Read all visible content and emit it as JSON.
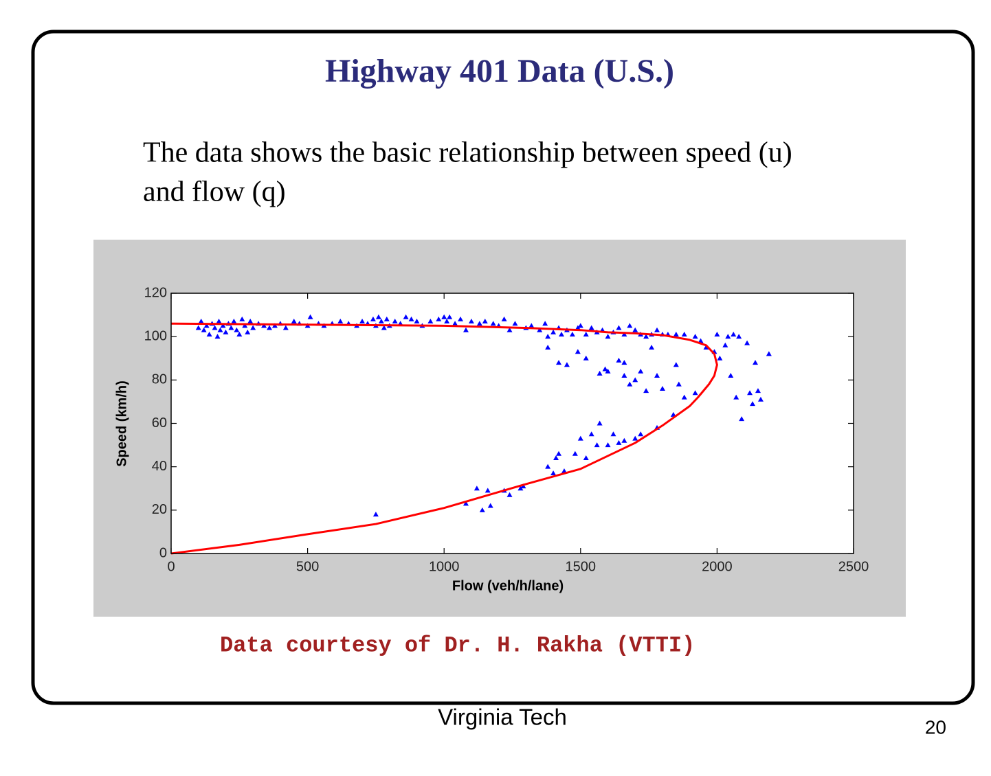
{
  "header": {
    "title": "Highway 401 Data (U.S.)"
  },
  "body": {
    "lines": [
      "The data shows the basic relationship between speed (u)",
      "and flow (q)"
    ]
  },
  "chart_data": {
    "type": "scatter",
    "xlabel": "Flow (veh/h/lane)",
    "ylabel": "Speed (km/h)",
    "xlim": [
      0,
      2500
    ],
    "ylim": [
      0,
      120
    ],
    "xticks": [
      0,
      500,
      1000,
      1500,
      2000,
      2500
    ],
    "yticks": [
      0,
      20,
      40,
      60,
      80,
      100,
      120
    ],
    "series": [
      {
        "type": "scatter",
        "color": "#0000ff",
        "x": [
          100,
          110,
          120,
          130,
          140,
          150,
          160,
          170,
          175,
          180,
          190,
          200,
          210,
          220,
          230,
          240,
          250,
          260,
          270,
          280,
          290,
          300,
          320,
          340,
          360,
          380,
          400,
          420,
          450,
          470,
          500,
          510,
          540,
          560,
          590,
          620,
          650,
          680,
          700,
          720,
          740,
          750,
          760,
          770,
          780,
          790,
          800,
          820,
          840,
          860,
          880,
          900,
          920,
          950,
          980,
          1000,
          1010,
          1020,
          1040,
          1060,
          1080,
          1100,
          1130,
          1150,
          1180,
          1200,
          1220,
          1240,
          1260,
          1300,
          1320,
          1350,
          1370,
          1380,
          1400,
          1420,
          1430,
          1450,
          1470,
          1490,
          1500,
          1520,
          1540,
          1560,
          1580,
          1600,
          1620,
          1640,
          1660,
          1680,
          1700,
          1720,
          1740,
          1760,
          1780,
          1800,
          1820,
          1850,
          1880,
          1920,
          1940,
          1960,
          1990,
          2000,
          2010,
          2030,
          2040,
          2060,
          2080,
          2110,
          2190,
          1380,
          1420,
          1450,
          1490,
          1520,
          1570,
          1590,
          1600,
          1640,
          1660,
          1660,
          1680,
          1700,
          1720,
          1740,
          1760,
          1780,
          1800,
          1850,
          1860,
          2050,
          2070,
          2090,
          2120,
          2130,
          2140,
          2150,
          2160,
          750,
          1080,
          1120,
          1140,
          1160,
          1170,
          1220,
          1240,
          1280,
          1290,
          1380,
          1400,
          1410,
          1420,
          1440,
          1480,
          1500,
          1520,
          1540,
          1560,
          1570,
          1600,
          1620,
          1640,
          1660,
          1700,
          1720,
          1780,
          1840,
          1880,
          1920
        ],
        "y": [
          104,
          107,
          103,
          105,
          101,
          106,
          104,
          100,
          107,
          103,
          105,
          102,
          106,
          104,
          107,
          103,
          101,
          108,
          105,
          102,
          107,
          104,
          106,
          105,
          104,
          105,
          106,
          104,
          107,
          106,
          105,
          109,
          106,
          105,
          106,
          107,
          106,
          105,
          107,
          106,
          108,
          105,
          109,
          107,
          104,
          108,
          105,
          107,
          106,
          109,
          108,
          107,
          105,
          107,
          108,
          109,
          107,
          109,
          106,
          108,
          103,
          107,
          106,
          107,
          106,
          105,
          108,
          103,
          106,
          104,
          105,
          103,
          106,
          100,
          102,
          104,
          101,
          103,
          101,
          104,
          105,
          101,
          104,
          102,
          103,
          100,
          102,
          104,
          101,
          105,
          103,
          101,
          100,
          101,
          103,
          101,
          101,
          101,
          101,
          100,
          98,
          95,
          93,
          101,
          90,
          96,
          100,
          101,
          100,
          97,
          92,
          95,
          88,
          87,
          93,
          90,
          83,
          85,
          84,
          89,
          88,
          82,
          78,
          80,
          84,
          75,
          95,
          82,
          76,
          87,
          78,
          82,
          72,
          62,
          74,
          69,
          88,
          75,
          71,
          18,
          23,
          30,
          20,
          29,
          22,
          29,
          27,
          30,
          31,
          40,
          37,
          44,
          46,
          38,
          46,
          53,
          44,
          55,
          50,
          60,
          50,
          55,
          51,
          52,
          53,
          55,
          58,
          64,
          72,
          74
        ]
      },
      {
        "type": "line",
        "color": "#ff0000",
        "x": [
          0,
          500,
          1000,
          1300,
          1500,
          1600,
          1700,
          1800,
          1900,
          1960,
          1990,
          2000,
          1990,
          1970,
          1930,
          1900,
          1800,
          1700,
          1500,
          1300,
          1000,
          750,
          500,
          250,
          0
        ],
        "y": [
          106,
          105.5,
          105,
          104,
          103,
          102,
          101.5,
          100.7,
          98.5,
          96,
          92,
          87,
          82,
          78,
          72,
          68,
          59,
          51,
          39,
          32,
          21,
          13.6,
          8.9,
          4,
          0
        ]
      }
    ]
  },
  "caption": "Data courtesy of Dr. H. Rakha (VTTI)",
  "footer": {
    "institution": "Virginia Tech",
    "page": "20"
  }
}
